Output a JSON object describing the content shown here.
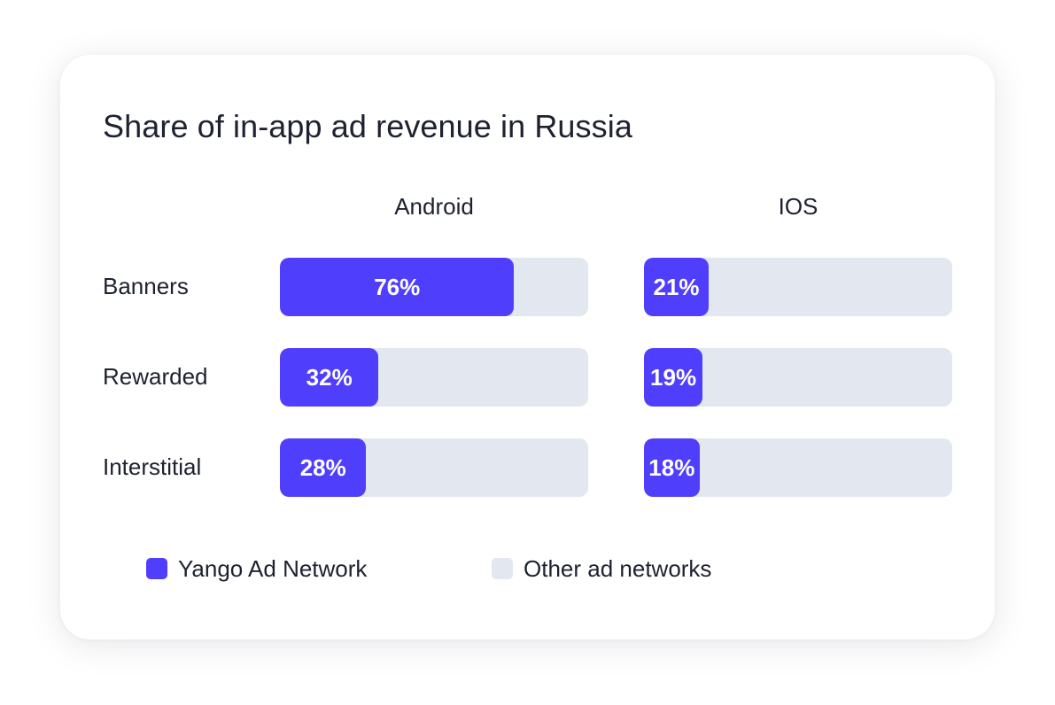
{
  "colors": {
    "yango": "#4f3ffd",
    "other": "#e3e7f0"
  },
  "chart_data": {
    "type": "bar",
    "orientation": "horizontal",
    "stacked": true,
    "title": "Share of in-app ad revenue in Russia",
    "panels": [
      {
        "name": "Android",
        "categories": [
          "Banners",
          "Rewarded",
          "Interstitial"
        ],
        "values": [
          76,
          32,
          28
        ],
        "labels": [
          "76%",
          "32%",
          "28%"
        ]
      },
      {
        "name": "IOS",
        "categories": [
          "Banners",
          "Rewarded",
          "Interstitial"
        ],
        "values": [
          21,
          19,
          18
        ],
        "labels": [
          "21%",
          "19%",
          "18%"
        ]
      }
    ],
    "categories": [
      "Banners",
      "Rewarded",
      "Interstitial"
    ],
    "series": [
      {
        "name": "Yango Ad Network",
        "color": "#4f3ffd"
      },
      {
        "name": "Other ad networks",
        "color": "#e3e7f0"
      }
    ],
    "xlim": [
      0,
      100
    ],
    "unit": "%",
    "grid": false,
    "legend_position": "bottom"
  }
}
